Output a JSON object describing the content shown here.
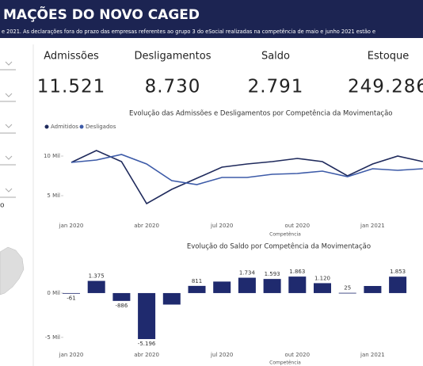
{
  "header": {
    "title": "MAÇÕES DO NOVO CAGED",
    "subtitle": "e 2021. As declarações fora do prazo das empresas referentes ao grupo 3 do eSocial realizadas na competência de maio e junho 2021 estão e"
  },
  "left_panel": {
    "fragment": "o"
  },
  "kpis": [
    {
      "label": "Admissões",
      "value": "11.521"
    },
    {
      "label": "Desligamentos",
      "value": "8.730"
    },
    {
      "label": "Saldo",
      "value": "2.791"
    },
    {
      "label": "Estoque",
      "value": "249.286"
    }
  ],
  "chart_data": [
    {
      "type": "line",
      "title": "Evolução das Admissões e Desligamentos por Competência da Movimentação",
      "x_label": "Competência",
      "categories": [
        "jan 2020",
        null,
        null,
        "abr 2020",
        null,
        null,
        "jul 2020",
        null,
        null,
        "out 2020",
        null,
        null,
        "jan 2021",
        null,
        null
      ],
      "series": [
        {
          "name": "Admitidos",
          "color": "#1f2a5c",
          "values": [
            9200,
            10700,
            9300,
            4000,
            5800,
            7200,
            8600,
            9000,
            9300,
            9700,
            9300,
            7500,
            9000,
            10000,
            9300
          ]
        },
        {
          "name": "Desligados",
          "color": "#3d5ba8",
          "values": [
            9200,
            9500,
            10200,
            9000,
            6900,
            6400,
            7300,
            7300,
            7700,
            7800,
            8100,
            7400,
            8400,
            8200,
            8400
          ]
        }
      ],
      "ylim": [
        3000,
        13000
      ],
      "yticks": [
        {
          "value": 5000,
          "label": "5 Mil"
        },
        {
          "value": 10000,
          "label": "10 Mil"
        }
      ]
    },
    {
      "type": "bar",
      "title": "Evolução do Saldo por Competência da Movimentação",
      "x_label": "Competência",
      "categories": [
        "jan 2020",
        null,
        null,
        "abr 2020",
        null,
        null,
        "jul 2020",
        null,
        null,
        "out 2020",
        null,
        null,
        "jan 2021",
        null
      ],
      "values": [
        -61,
        1375,
        -886,
        -5196,
        -1300,
        811,
        1300,
        1734,
        1593,
        1863,
        1120,
        25,
        800,
        1853
      ],
      "value_labels": [
        "-61",
        "1.375",
        "-886",
        "-5.196",
        null,
        "811",
        null,
        "1.734",
        "1.593",
        "1.863",
        "1.120",
        "25",
        null,
        "1.853"
      ],
      "color": "#1f2a6e",
      "ylim": [
        -6000,
        2500
      ],
      "yticks": [
        {
          "value": -5000,
          "label": "-5 Mil"
        },
        {
          "value": 0,
          "label": "0 Mil"
        }
      ]
    }
  ]
}
